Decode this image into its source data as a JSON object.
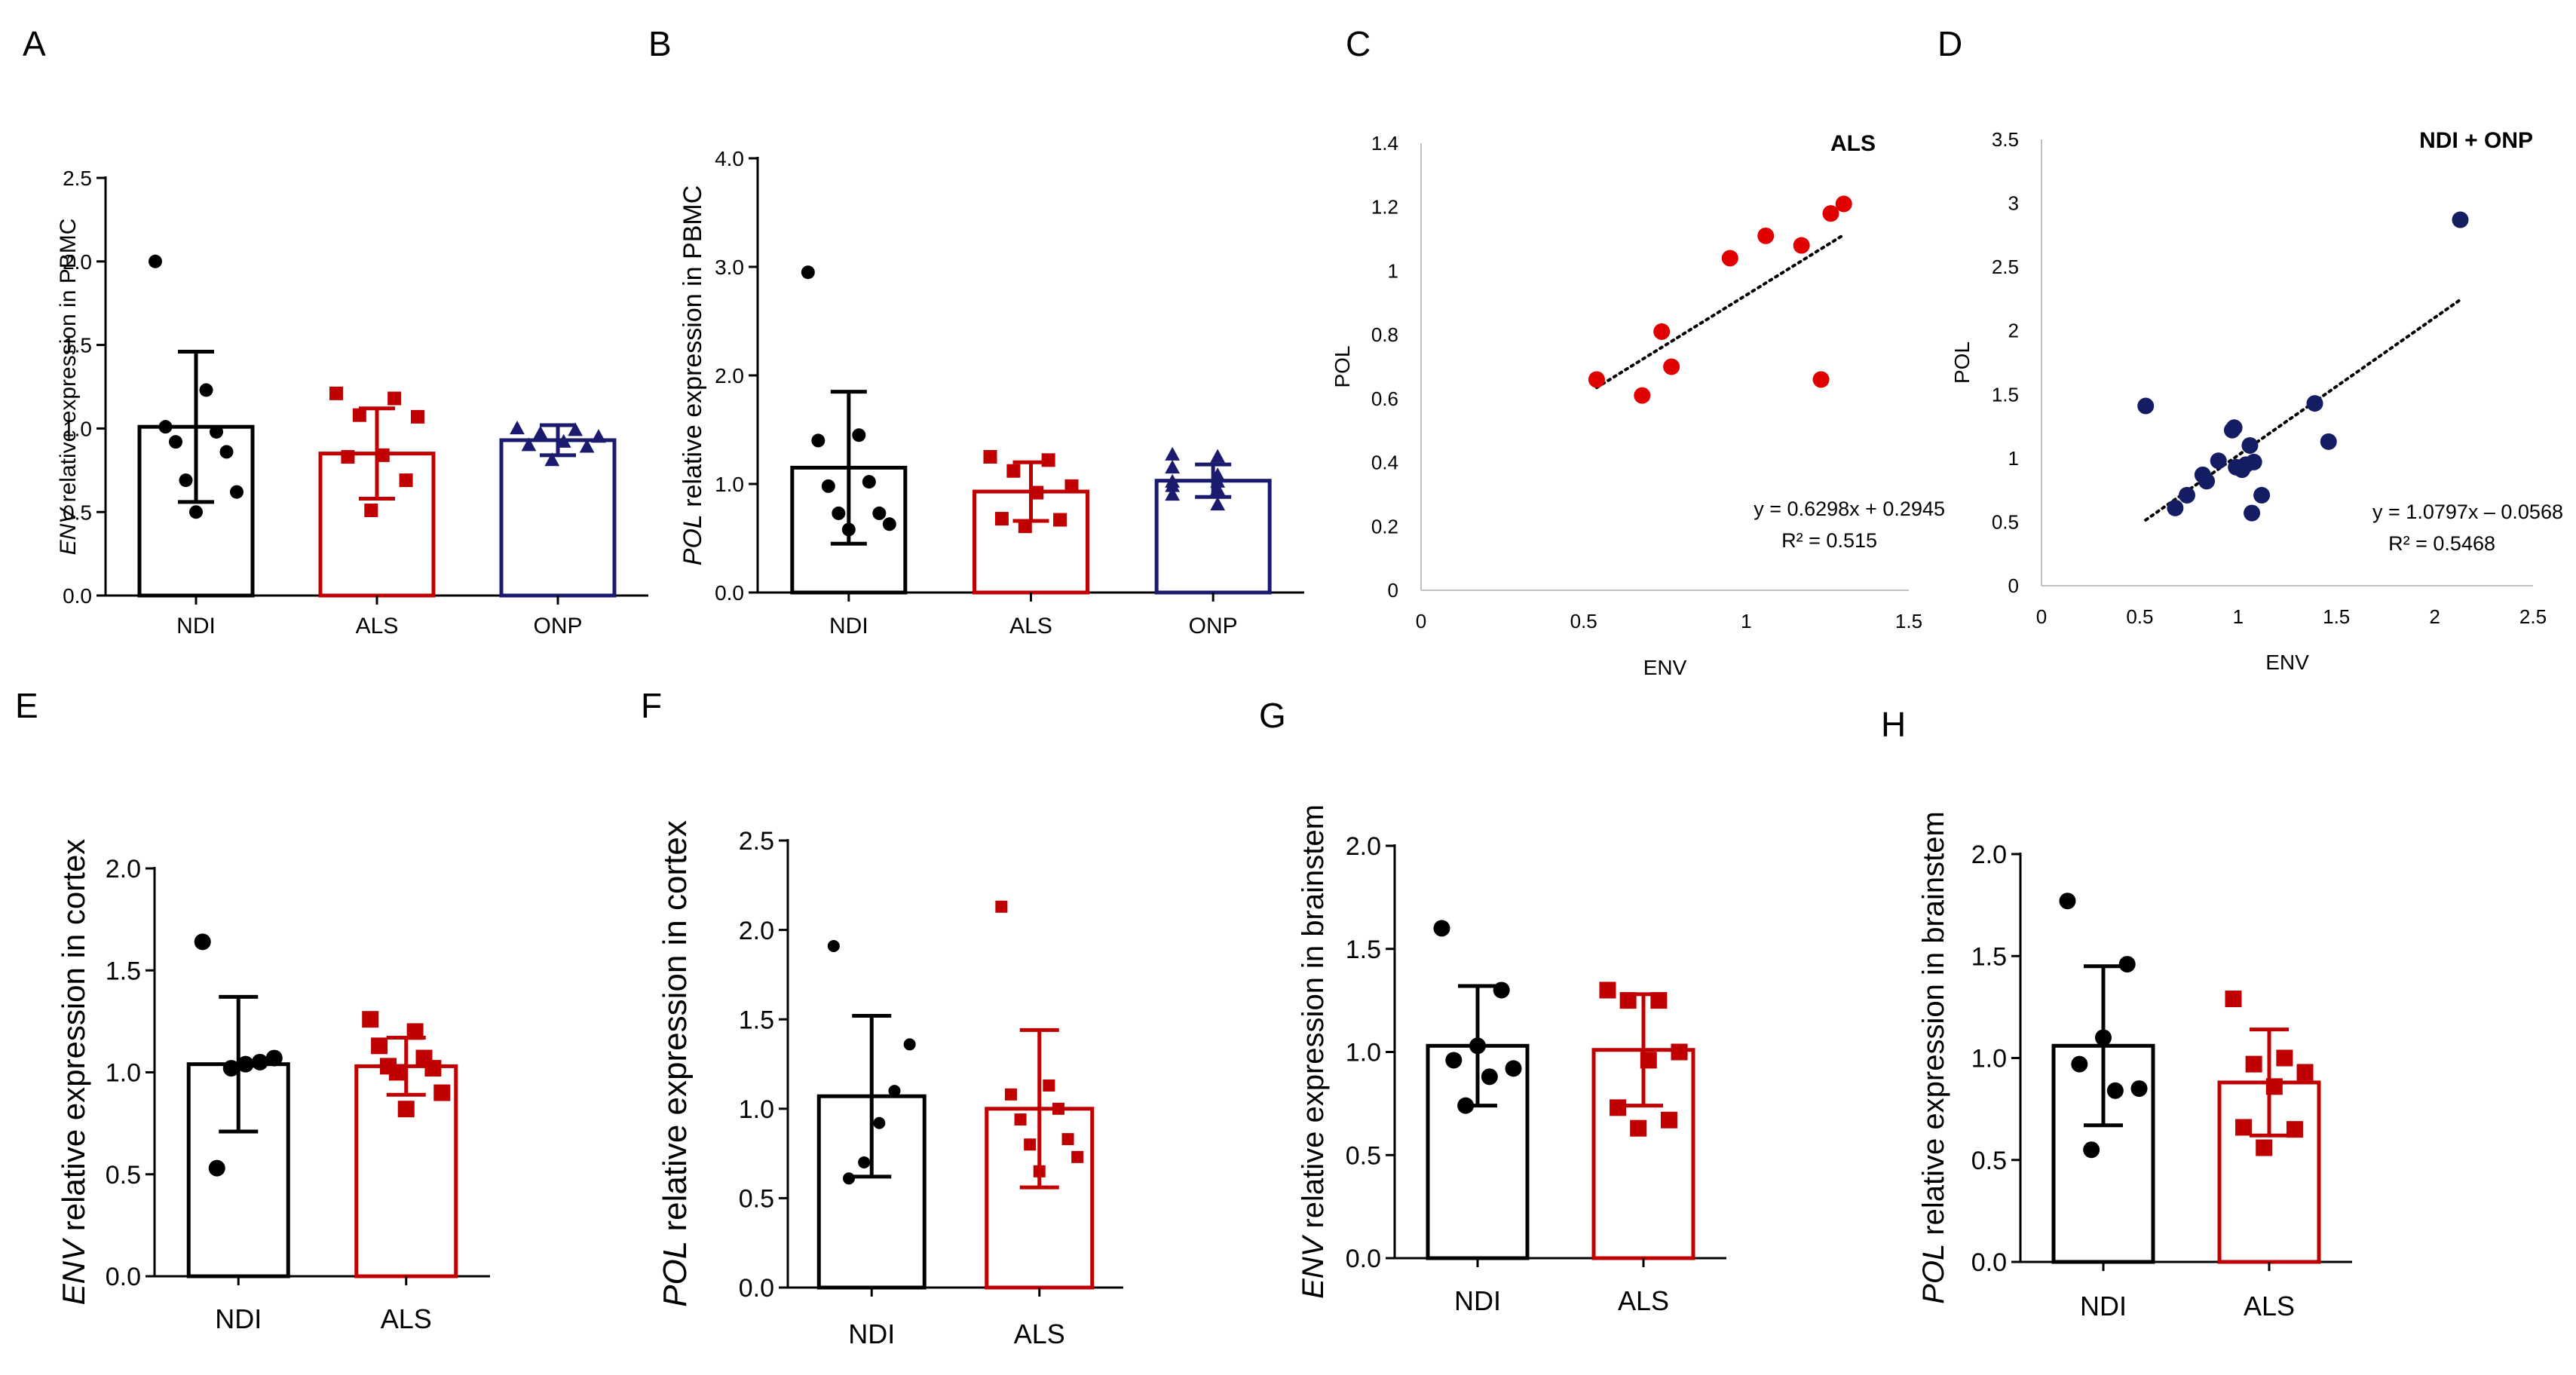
{
  "colors": {
    "ndi": "#000000",
    "als": "#c00000",
    "onp": "#1a1a6e",
    "scatter_als": "#e00000",
    "scatter_ndi_onp": "#141c64"
  },
  "chart_data": [
    {
      "panel": "A",
      "type": "bar",
      "ylabel_italic": "ENV",
      "ylabel_rest": " relative expression in PBMC",
      "ylim": [
        0,
        2.5
      ],
      "yticks": [
        "0.0",
        "0.5",
        "1.0",
        "1.5",
        "2.0",
        "2.5"
      ],
      "categories": [
        "NDI",
        "ALS",
        "ONP"
      ],
      "means": [
        1.01,
        0.85,
        0.93
      ],
      "sd": [
        0.45,
        0.27,
        0.09
      ],
      "markers": [
        "circle",
        "square",
        "triangle"
      ],
      "points": [
        [
          2.0,
          1.23,
          1.01,
          0.98,
          0.92,
          0.86,
          0.69,
          0.62,
          0.5
        ],
        [
          1.21,
          1.18,
          1.08,
          1.07,
          0.84,
          0.83,
          0.69,
          0.51
        ],
        [
          1.0,
          0.99,
          0.97,
          0.95,
          0.92,
          0.9,
          0.89,
          0.81
        ]
      ]
    },
    {
      "panel": "B",
      "type": "bar",
      "ylabel_italic": "POL",
      "ylabel_rest": " relative expression in PBMC",
      "ylim": [
        0,
        4.0
      ],
      "yticks": [
        "0.0",
        "1.0",
        "2.0",
        "3.0",
        "4.0"
      ],
      "categories": [
        "NDI",
        "ALS",
        "ONP"
      ],
      "means": [
        1.15,
        0.93,
        1.03
      ],
      "sd": [
        0.7,
        0.27,
        0.15
      ],
      "markers": [
        "circle",
        "square",
        "triangle"
      ],
      "points": [
        [
          2.95,
          1.45,
          1.4,
          1.02,
          0.98,
          0.73,
          0.73,
          0.63,
          0.58
        ],
        [
          1.25,
          1.22,
          1.12,
          0.98,
          0.92,
          0.68,
          0.67,
          0.61
        ],
        [
          1.27,
          1.25,
          1.15,
          1.08,
          1.02,
          1.02,
          0.98,
          0.95,
          0.9,
          0.81
        ]
      ]
    },
    {
      "panel": "E",
      "type": "bar",
      "ylabel_italic": "ENV",
      "ylabel_rest": " relative expression in cortex",
      "ylim": [
        0,
        2.0
      ],
      "yticks": [
        "0.0",
        "0.5",
        "1.0",
        "1.5",
        "2.0"
      ],
      "categories": [
        "NDI",
        "ALS"
      ],
      "means": [
        1.04,
        1.03
      ],
      "sd": [
        0.33,
        0.14
      ],
      "markers": [
        "circle",
        "square"
      ],
      "points": [
        [
          1.64,
          1.07,
          1.05,
          1.04,
          1.02,
          0.53
        ],
        [
          1.26,
          1.2,
          1.13,
          1.07,
          1.03,
          1.02,
          1.0,
          0.9,
          0.82
        ]
      ]
    },
    {
      "panel": "F",
      "type": "bar",
      "ylabel_italic": "POL",
      "ylabel_rest": " relative expression in cortex",
      "ylim": [
        0,
        2.5
      ],
      "yticks": [
        "0.0",
        "0.5",
        "1.0",
        "1.5",
        "2.0",
        "2.5"
      ],
      "categories": [
        "NDI",
        "ALS"
      ],
      "means": [
        1.07,
        1.0
      ],
      "sd": [
        0.45,
        0.44
      ],
      "markers": [
        "circle",
        "square"
      ],
      "points": [
        [
          1.91,
          1.36,
          1.1,
          0.92,
          0.7,
          0.61
        ],
        [
          2.13,
          1.13,
          1.08,
          1.0,
          0.94,
          0.83,
          0.8,
          0.73,
          0.65
        ]
      ]
    },
    {
      "panel": "G",
      "type": "bar",
      "ylabel_italic": "ENV",
      "ylabel_rest": " relative expression in brainstem",
      "ylim": [
        0,
        2.0
      ],
      "yticks": [
        "0.0",
        "0.5",
        "1.0",
        "1.5",
        "2.0"
      ],
      "categories": [
        "NDI",
        "ALS"
      ],
      "means": [
        1.03,
        1.01
      ],
      "sd": [
        0.29,
        0.27
      ],
      "markers": [
        "circle",
        "square"
      ],
      "points": [
        [
          1.6,
          1.3,
          1.03,
          0.96,
          0.92,
          0.88,
          0.74
        ],
        [
          1.3,
          1.25,
          1.25,
          1.0,
          0.96,
          0.73,
          0.67,
          0.63
        ]
      ]
    },
    {
      "panel": "H",
      "type": "bar",
      "ylabel_italic": "POL",
      "ylabel_rest": " relative expression in brainstem",
      "ylim": [
        0,
        2.0
      ],
      "yticks": [
        "0.0",
        "0.5",
        "1.0",
        "1.5",
        "2.0"
      ],
      "categories": [
        "NDI",
        "ALS"
      ],
      "means": [
        1.06,
        0.88
      ],
      "sd": [
        0.39,
        0.26
      ],
      "markers": [
        "circle",
        "square"
      ],
      "points": [
        [
          1.77,
          1.46,
          1.1,
          0.97,
          0.85,
          0.84,
          0.55
        ],
        [
          1.29,
          1.0,
          0.97,
          0.93,
          0.86,
          0.66,
          0.65,
          0.56
        ]
      ]
    },
    {
      "panel": "C",
      "type": "scatter",
      "title": "ALS",
      "xlabel": "ENV",
      "ylabel": "POL",
      "xlim": [
        0,
        1.5
      ],
      "ylim": [
        0,
        1.4
      ],
      "xticks": [
        "0",
        "0.5",
        "1",
        "1.5"
      ],
      "yticks": [
        "0",
        "0.2",
        "0.4",
        "0.6",
        "0.8",
        "1",
        "1.2",
        "1.4"
      ],
      "x": [
        0.54,
        0.68,
        0.74,
        0.77,
        0.95,
        1.06,
        1.17,
        1.23,
        1.26,
        1.3
      ],
      "y": [
        0.66,
        0.61,
        0.81,
        0.7,
        1.04,
        1.11,
        1.08,
        0.66,
        1.18,
        1.21
      ],
      "fit": {
        "slope": 0.6298,
        "intercept": 0.2945,
        "x_range": [
          0.54,
          1.3
        ]
      },
      "equation": "y = 0.6298x + 0.2945",
      "r2": "R² = 0.515"
    },
    {
      "panel": "D",
      "type": "scatter",
      "title": "NDI + ONP",
      "xlabel": "ENV",
      "ylabel": "POL",
      "xlim": [
        0,
        2.5
      ],
      "ylim": [
        0,
        3.5
      ],
      "xticks": [
        "0",
        "0.5",
        "1",
        "1.5",
        "2",
        "2.5"
      ],
      "yticks": [
        "0",
        "0.5",
        "1",
        "1.5",
        "2",
        "2.5",
        "3",
        "3.5"
      ],
      "x": [
        0.53,
        0.68,
        0.74,
        0.82,
        0.84,
        0.9,
        0.97,
        0.98,
        0.99,
        1.02,
        1.04,
        1.06,
        1.07,
        1.08,
        1.12,
        1.39,
        1.46,
        2.13
      ],
      "y": [
        1.41,
        0.61,
        0.71,
        0.87,
        0.82,
        0.98,
        1.22,
        1.24,
        0.93,
        0.91,
        0.95,
        1.1,
        0.57,
        0.97,
        0.71,
        1.43,
        1.13,
        2.87
      ],
      "fit": {
        "slope": 1.0797,
        "intercept": -0.0568,
        "x_range": [
          0.53,
          2.13
        ]
      },
      "equation": "y = 1.0797x – 0.0568",
      "r2": "R² = 0.5468"
    }
  ]
}
